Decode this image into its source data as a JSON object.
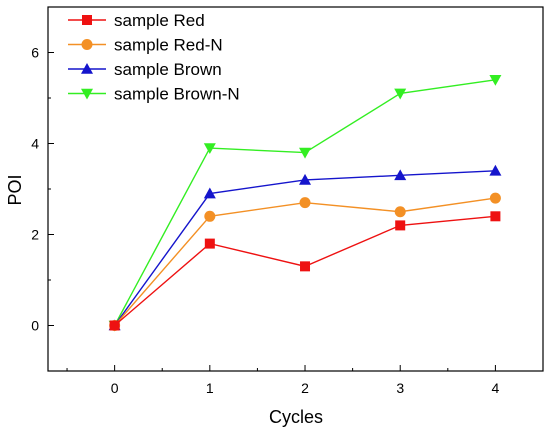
{
  "chart_data": {
    "type": "line",
    "title": "",
    "xlabel": "Cycles",
    "ylabel": "POI",
    "x": [
      0,
      1,
      2,
      3,
      4
    ],
    "x_ticks": [
      "0",
      "1",
      "2",
      "3",
      "4"
    ],
    "y_ticks": [
      "0",
      "2",
      "4",
      "6"
    ],
    "xlim": [
      -0.7,
      4.5
    ],
    "ylim": [
      -1,
      7
    ],
    "grid": false,
    "legend_position": "top-left",
    "series": [
      {
        "name": "sample Red",
        "color": "#ee1111",
        "marker": "square",
        "values": [
          0,
          1.8,
          1.3,
          2.2,
          2.4
        ]
      },
      {
        "name": "sample Red-N",
        "color": "#f39025",
        "marker": "circle",
        "values": [
          0,
          2.4,
          2.7,
          2.5,
          2.8
        ]
      },
      {
        "name": "sample Brown",
        "color": "#1515cc",
        "marker": "triangle-up",
        "values": [
          0,
          2.9,
          3.2,
          3.3,
          3.4
        ]
      },
      {
        "name": "sample Brown-N",
        "color": "#33ee22",
        "marker": "triangle-down",
        "values": [
          0,
          3.9,
          3.8,
          5.1,
          5.4
        ]
      }
    ]
  }
}
